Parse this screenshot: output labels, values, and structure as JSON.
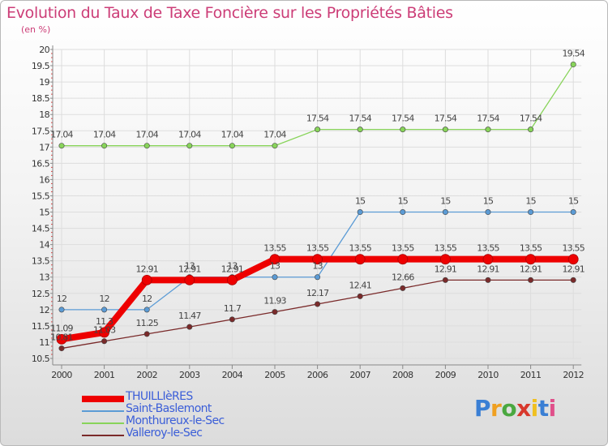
{
  "title": "Evolution du Taux de Taxe Foncière sur les Propriétés Bâties",
  "subtitle": "(en %)",
  "logo": {
    "text": "Proxiti",
    "colors": [
      "#3a7fd4",
      "#f0a020",
      "#4aa840",
      "#d8382c",
      "#f0c020",
      "#3a7fd4",
      "#e0508a"
    ]
  },
  "chart_data": {
    "type": "line",
    "title": "Evolution du Taux de Taxe Foncière sur les Propriétés Bâties",
    "ylabel": "(en %)",
    "xlabel": "",
    "ylim": [
      10.5,
      20
    ],
    "x": [
      "2000",
      "2001",
      "2002",
      "2003",
      "2004",
      "2005",
      "2006",
      "2007",
      "2008",
      "2009",
      "2010",
      "2011",
      "2012"
    ],
    "y_ticks": [
      "10.5",
      "11",
      "11.5",
      "12",
      "12.5",
      "13",
      "13.5",
      "14",
      "14.5",
      "15",
      "15.5",
      "16",
      "16.5",
      "17",
      "17.5",
      "18",
      "18.5",
      "19",
      "19.5",
      "20"
    ],
    "series": [
      {
        "name": "Monthureux-le-Sec",
        "color": "#88d45a",
        "width": 1.3,
        "values": [
          17.04,
          17.04,
          17.04,
          17.04,
          17.04,
          17.04,
          17.54,
          17.54,
          17.54,
          17.54,
          17.54,
          17.54,
          19.54
        ],
        "labels": [
          "17.04",
          "17.04",
          "17.04",
          "17.04",
          "17.04",
          "17.04",
          "17.54",
          "17.54",
          "17.54",
          "17.54",
          "17.54",
          "17.54",
          "19.54"
        ]
      },
      {
        "name": "Saint-Baslemont",
        "color": "#5b9bd5",
        "width": 1.3,
        "values": [
          12,
          12,
          12,
          13,
          13,
          13,
          13,
          15,
          15,
          15,
          15,
          15,
          15
        ],
        "labels": [
          "12",
          "12",
          "12",
          "13",
          "13",
          "13",
          "13",
          "15",
          "15",
          "15",
          "15",
          "15",
          "15"
        ]
      },
      {
        "name": "Valleroy-le-Sec",
        "color": "#7a2a2a",
        "width": 1.3,
        "values": [
          10.81,
          11.03,
          11.25,
          11.47,
          11.7,
          11.93,
          12.17,
          12.41,
          12.66,
          12.91,
          12.91,
          12.91,
          12.91
        ],
        "labels": [
          "10.81",
          "11.03",
          "11.25",
          "11.47",
          "11.7",
          "11.93",
          "12.17",
          "12.41",
          "12.66",
          "12.91",
          "12.91",
          "12.91",
          "12.91"
        ]
      },
      {
        "name": "THUILLIèRES",
        "color": "#ee0000",
        "width": 8,
        "values": [
          11.09,
          11.3,
          12.91,
          12.91,
          12.91,
          13.55,
          13.55,
          13.55,
          13.55,
          13.55,
          13.55,
          13.55,
          13.55
        ],
        "labels": [
          "11.09",
          "11.3",
          "12.91",
          "12.91",
          "12.91",
          "13.55",
          "13.55",
          "13.55",
          "13.55",
          "13.55",
          "13.55",
          "13.55",
          "13.55"
        ]
      }
    ],
    "legend": [
      "THUILLIèRES",
      "Saint-Baslemont",
      "Monthureux-le-Sec",
      "Valleroy-le-Sec"
    ]
  }
}
